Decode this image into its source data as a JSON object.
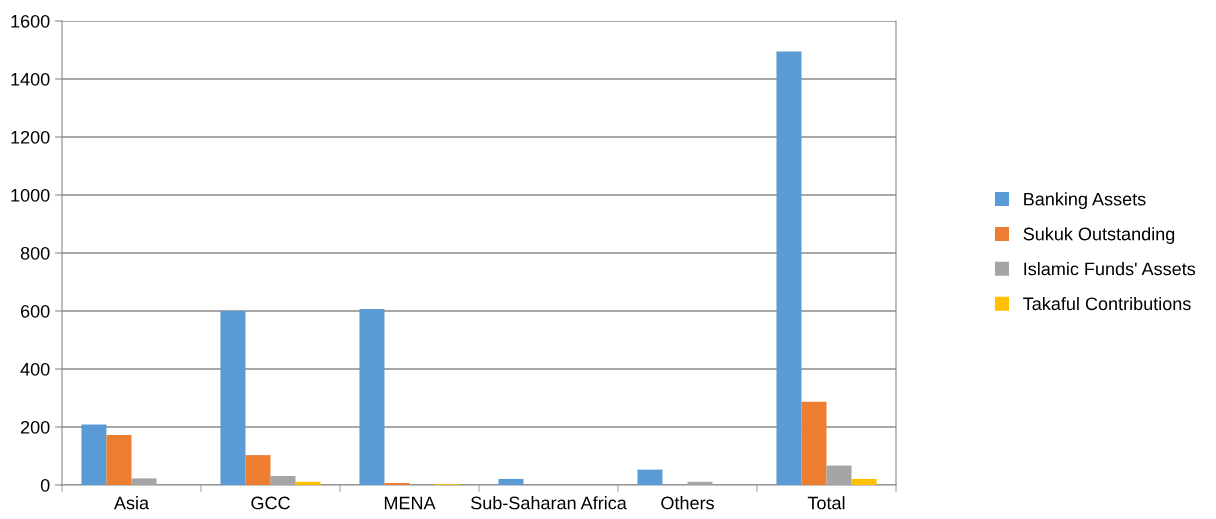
{
  "chart_data": {
    "type": "bar",
    "categories": [
      "Asia",
      "GCC",
      "MENA",
      "Sub-Saharan Africa",
      "Others",
      "Total"
    ],
    "series": [
      {
        "name": "Banking Assets",
        "color": "#5b9bd5",
        "values": [
          209,
          600,
          607,
          21,
          53,
          1495
        ]
      },
      {
        "name": "Sukuk Outstanding",
        "color": "#ed7d31",
        "values": [
          172,
          103,
          7,
          0,
          0,
          287
        ]
      },
      {
        "name": "Islamic Funds' Assets",
        "color": "#a5a5a5",
        "values": [
          23,
          31,
          0,
          0,
          11,
          67
        ]
      },
      {
        "name": "Takaful Contributions",
        "color": "#ffc000",
        "values": [
          null,
          11,
          3,
          0,
          0,
          21
        ]
      }
    ],
    "ylim": [
      0,
      1600
    ],
    "yticks": [
      0,
      200,
      400,
      600,
      800,
      1000,
      1200,
      1400,
      1600
    ],
    "grid": "y",
    "legend": "right"
  }
}
